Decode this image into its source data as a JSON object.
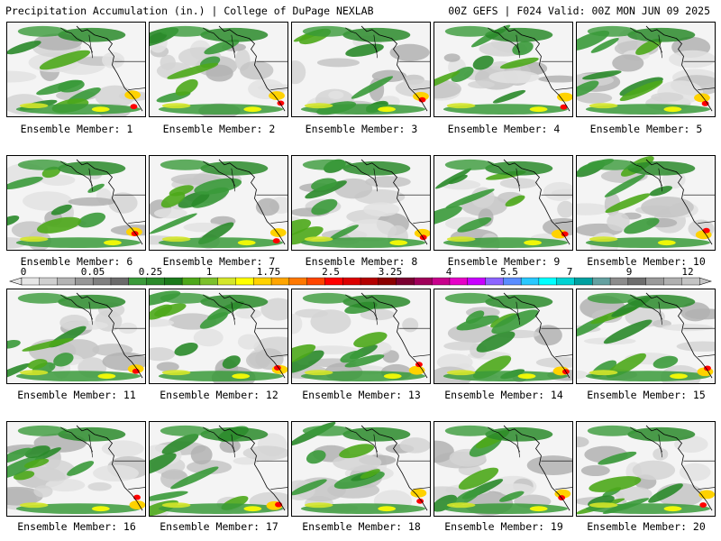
{
  "header": {
    "title": "Precipitation Accumulation (in.) | College of DuPage NEXLAB",
    "run_info": "00Z GEFS | F024 Valid: 00Z MON JUN 09 2025"
  },
  "member_prefix": "Ensemble Member:",
  "members": [
    {
      "label": "1"
    },
    {
      "label": "2"
    },
    {
      "label": "3"
    },
    {
      "label": "4"
    },
    {
      "label": "5"
    },
    {
      "label": "6"
    },
    {
      "label": "7"
    },
    {
      "label": "8"
    },
    {
      "label": "9"
    },
    {
      "label": "10"
    },
    {
      "label": "11"
    },
    {
      "label": "12"
    },
    {
      "label": "13"
    },
    {
      "label": "14"
    },
    {
      "label": "15"
    },
    {
      "label": "16"
    },
    {
      "label": "17"
    },
    {
      "label": "18"
    },
    {
      "label": "19"
    },
    {
      "label": "20"
    }
  ],
  "colorbar": {
    "labels": [
      "0",
      "0.05",
      "0.25",
      "1",
      "1.75",
      "2.5",
      "3.25",
      "4",
      "5.5",
      "7",
      "9",
      "12"
    ],
    "colors": [
      "#e6e6e6",
      "#cfcfcf",
      "#b4b4b4",
      "#979797",
      "#808080",
      "#6b6b6b",
      "#3a9a3a",
      "#2a8a2a",
      "#1b7a1b",
      "#4da81a",
      "#7cc02a",
      "#d4e62a",
      "#ffff00",
      "#ffd200",
      "#ffa500",
      "#ff7800",
      "#ff4500",
      "#ff0000",
      "#dc0000",
      "#b40000",
      "#8b0000",
      "#7a0030",
      "#a0005a",
      "#c8008c",
      "#e600c8",
      "#c800ff",
      "#8c64ff",
      "#5a8cff",
      "#28c8ff",
      "#00ffff",
      "#00d2d2",
      "#00a0a0",
      "#64a0a0",
      "#8c8c8c",
      "#6e6e6e",
      "#9a9a9a",
      "#b0b0b0",
      "#c4c4c4"
    ]
  }
}
